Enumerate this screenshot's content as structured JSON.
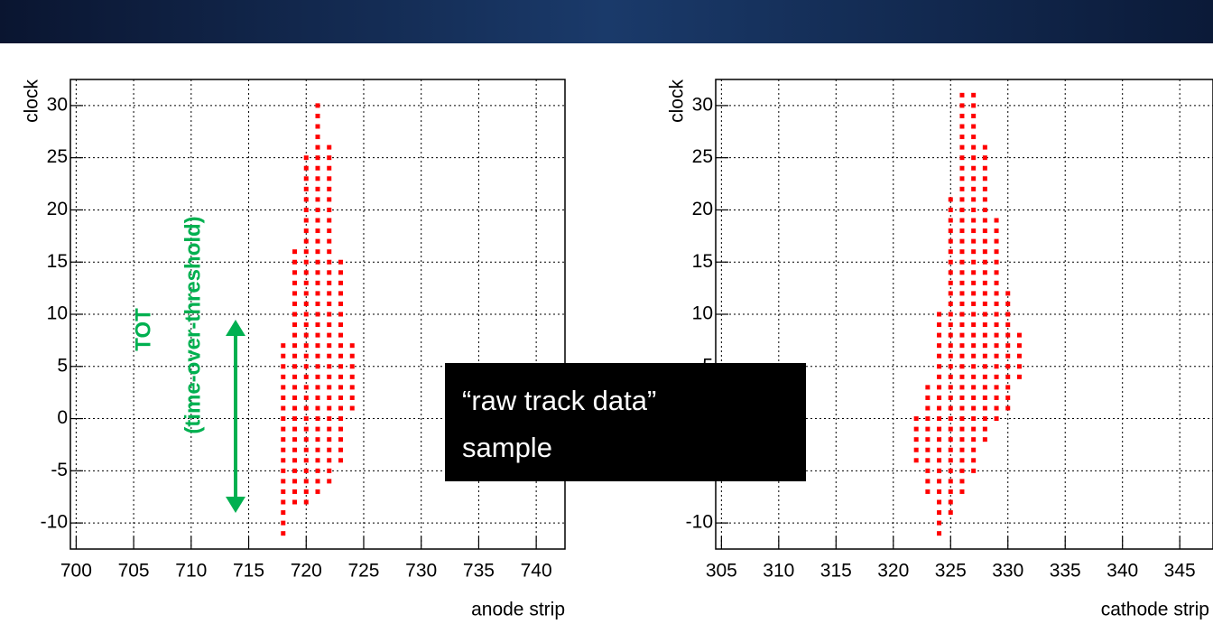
{
  "chart_data": [
    {
      "type": "scatter",
      "x_label": "anode strip",
      "y_label": "clock",
      "color": "#ff0000",
      "grid": true,
      "xlim": [
        699.5,
        742.5
      ],
      "ylim": [
        -12.5,
        32.5
      ],
      "xticks": [
        700,
        705,
        710,
        715,
        720,
        725,
        730,
        735,
        740
      ],
      "yticks": [
        -10,
        -5,
        0,
        5,
        10,
        15,
        20,
        25,
        30
      ],
      "annotations": [
        "TOT",
        "(time-over-threshold)"
      ],
      "x": [
        718,
        718,
        718,
        718,
        718,
        718,
        718,
        718,
        718,
        718,
        718,
        718,
        718,
        718,
        718,
        718,
        718,
        718,
        718,
        719,
        719,
        719,
        719,
        719,
        719,
        719,
        719,
        719,
        719,
        719,
        719,
        719,
        719,
        719,
        719,
        719,
        719,
        719,
        719,
        719,
        719,
        719,
        719,
        719,
        720,
        720,
        720,
        720,
        720,
        720,
        720,
        720,
        720,
        720,
        720,
        720,
        720,
        720,
        720,
        720,
        720,
        720,
        720,
        720,
        720,
        720,
        720,
        720,
        720,
        720,
        720,
        720,
        720,
        720,
        720,
        720,
        720,
        720,
        721,
        721,
        721,
        721,
        721,
        721,
        721,
        721,
        721,
        721,
        721,
        721,
        721,
        721,
        721,
        721,
        721,
        721,
        721,
        721,
        721,
        721,
        721,
        721,
        721,
        721,
        721,
        721,
        721,
        721,
        721,
        721,
        721,
        721,
        721,
        721,
        721,
        721,
        722,
        722,
        722,
        722,
        722,
        722,
        722,
        722,
        722,
        722,
        722,
        722,
        722,
        722,
        722,
        722,
        722,
        722,
        722,
        722,
        722,
        722,
        722,
        722,
        722,
        722,
        722,
        722,
        722,
        722,
        722,
        722,
        722,
        723,
        723,
        723,
        723,
        723,
        723,
        723,
        723,
        723,
        723,
        723,
        723,
        723,
        723,
        723,
        723,
        723,
        723,
        723,
        723,
        724,
        724,
        724,
        724,
        724,
        724,
        724
      ],
      "y": [
        -11,
        -10,
        -9,
        -8,
        -7,
        -6,
        -5,
        -4,
        -3,
        -2,
        -1,
        0,
        1,
        2,
        3,
        4,
        5,
        6,
        7,
        -8,
        -7,
        -6,
        -5,
        -4,
        -3,
        -2,
        -1,
        0,
        1,
        2,
        3,
        4,
        5,
        6,
        7,
        8,
        9,
        10,
        11,
        12,
        13,
        14,
        15,
        16,
        -8,
        -7,
        -6,
        -5,
        -4,
        -3,
        -2,
        -1,
        0,
        1,
        2,
        3,
        4,
        5,
        6,
        7,
        8,
        9,
        10,
        11,
        12,
        13,
        14,
        15,
        16,
        17,
        18,
        19,
        20,
        21,
        22,
        23,
        24,
        25,
        -7,
        -6,
        -5,
        -4,
        -3,
        -2,
        -1,
        0,
        1,
        2,
        3,
        4,
        5,
        6,
        7,
        8,
        9,
        10,
        11,
        12,
        13,
        14,
        15,
        16,
        17,
        18,
        19,
        20,
        21,
        22,
        23,
        24,
        25,
        26,
        27,
        28,
        29,
        30,
        -6,
        -5,
        -4,
        -3,
        -2,
        -1,
        0,
        1,
        2,
        3,
        4,
        5,
        6,
        7,
        8,
        9,
        10,
        11,
        12,
        13,
        14,
        15,
        16,
        17,
        18,
        19,
        20,
        21,
        22,
        23,
        24,
        25,
        26,
        -4,
        -3,
        -2,
        -1,
        0,
        1,
        2,
        3,
        4,
        5,
        6,
        7,
        8,
        9,
        10,
        11,
        12,
        13,
        14,
        15,
        1,
        2,
        3,
        4,
        5,
        6,
        7
      ]
    },
    {
      "type": "scatter",
      "x_label": "cathode strip",
      "y_label": "clock",
      "color": "#ff0000",
      "grid": true,
      "xlim": [
        304.5,
        347.9
      ],
      "ylim": [
        -12.5,
        32.5
      ],
      "xticks": [
        305,
        310,
        315,
        320,
        325,
        330,
        335,
        340,
        345
      ],
      "yticks": [
        -10,
        -5,
        0,
        5,
        10,
        15,
        20,
        25,
        30
      ],
      "x": [
        322,
        322,
        322,
        322,
        322,
        323,
        323,
        323,
        323,
        323,
        323,
        323,
        323,
        323,
        323,
        323,
        324,
        324,
        324,
        324,
        324,
        324,
        324,
        324,
        324,
        324,
        324,
        324,
        324,
        324,
        324,
        324,
        324,
        324,
        324,
        324,
        324,
        324,
        325,
        325,
        325,
        325,
        325,
        325,
        325,
        325,
        325,
        325,
        325,
        325,
        325,
        325,
        325,
        325,
        325,
        325,
        325,
        325,
        325,
        325,
        325,
        325,
        325,
        325,
        325,
        325,
        325,
        325,
        325,
        326,
        326,
        326,
        326,
        326,
        326,
        326,
        326,
        326,
        326,
        326,
        326,
        326,
        326,
        326,
        326,
        326,
        326,
        326,
        326,
        326,
        326,
        326,
        326,
        326,
        326,
        326,
        326,
        326,
        326,
        326,
        326,
        326,
        326,
        326,
        326,
        326,
        326,
        326,
        327,
        327,
        327,
        327,
        327,
        327,
        327,
        327,
        327,
        327,
        327,
        327,
        327,
        327,
        327,
        327,
        327,
        327,
        327,
        327,
        327,
        327,
        327,
        327,
        327,
        327,
        327,
        327,
        327,
        327,
        327,
        327,
        327,
        327,
        327,
        327,
        327,
        328,
        328,
        328,
        328,
        328,
        328,
        328,
        328,
        328,
        328,
        328,
        328,
        328,
        328,
        328,
        328,
        328,
        328,
        328,
        328,
        328,
        328,
        328,
        328,
        328,
        328,
        328,
        328,
        328,
        329,
        329,
        329,
        329,
        329,
        329,
        329,
        329,
        329,
        329,
        329,
        329,
        329,
        329,
        329,
        329,
        329,
        329,
        329,
        329,
        330,
        330,
        330,
        330,
        330,
        330,
        330,
        330,
        330,
        330,
        330,
        330,
        331,
        331,
        331,
        331,
        331
      ],
      "y": [
        -4,
        -3,
        -2,
        -1,
        0,
        -7,
        -6,
        -5,
        -4,
        -3,
        -2,
        -1,
        0,
        1,
        2,
        3,
        -11,
        -10,
        -9,
        -8,
        -7,
        -6,
        -5,
        -4,
        -3,
        -2,
        -1,
        0,
        1,
        2,
        3,
        4,
        5,
        6,
        7,
        8,
        9,
        10,
        -9,
        -8,
        -7,
        -6,
        -5,
        -4,
        -3,
        -2,
        -1,
        0,
        1,
        2,
        3,
        4,
        5,
        6,
        7,
        8,
        9,
        10,
        11,
        12,
        13,
        14,
        15,
        16,
        17,
        18,
        19,
        20,
        21,
        -7,
        -6,
        -5,
        -4,
        -3,
        -2,
        -1,
        0,
        1,
        2,
        3,
        4,
        5,
        6,
        7,
        8,
        9,
        10,
        11,
        12,
        13,
        14,
        15,
        16,
        17,
        18,
        19,
        20,
        21,
        22,
        23,
        24,
        25,
        26,
        27,
        28,
        29,
        30,
        31,
        -5,
        -4,
        -3,
        -2,
        -1,
        0,
        1,
        2,
        3,
        4,
        5,
        6,
        7,
        8,
        9,
        10,
        11,
        12,
        13,
        14,
        15,
        16,
        17,
        18,
        19,
        20,
        21,
        22,
        23,
        24,
        25,
        26,
        27,
        28,
        29,
        30,
        31,
        -2,
        -1,
        0,
        1,
        2,
        3,
        4,
        5,
        6,
        7,
        8,
        9,
        10,
        11,
        12,
        13,
        14,
        15,
        16,
        17,
        18,
        19,
        20,
        21,
        22,
        23,
        24,
        25,
        26,
        0,
        1,
        2,
        3,
        4,
        5,
        6,
        7,
        8,
        9,
        10,
        11,
        12,
        13,
        14,
        15,
        16,
        17,
        18,
        19,
        1,
        2,
        3,
        4,
        5,
        6,
        7,
        8,
        9,
        10,
        11,
        12,
        4,
        5,
        6,
        7,
        8
      ]
    }
  ],
  "callout": [
    "“raw track data”",
    "sample"
  ]
}
